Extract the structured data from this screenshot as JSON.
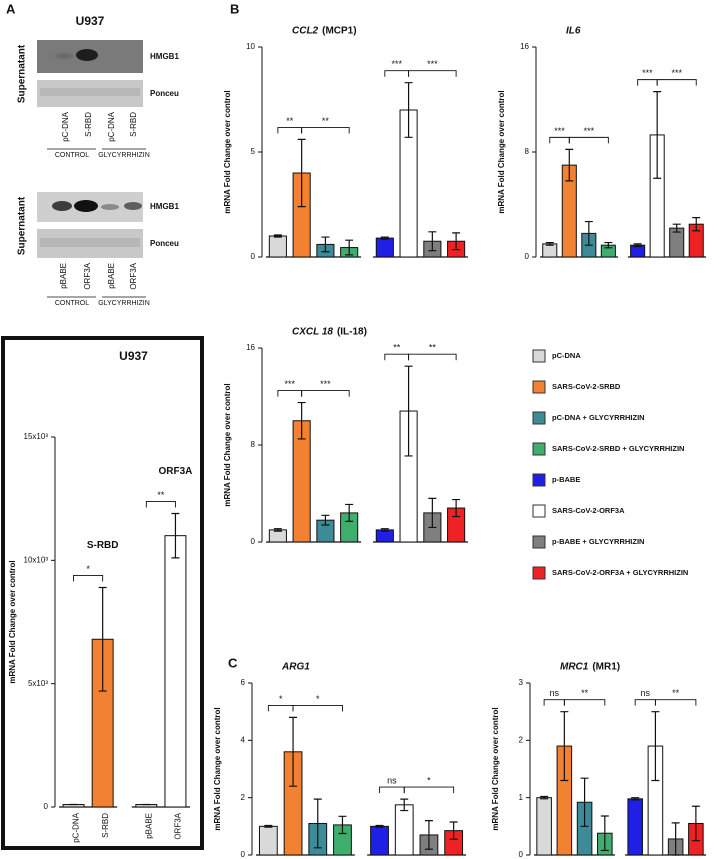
{
  "panels": {
    "a": "A",
    "b": "B",
    "c": "C"
  },
  "blots": [
    {
      "title": "U937",
      "rows": [
        "HMGB1",
        "Ponceu"
      ],
      "side_label": "Supernatant",
      "lanes": [
        "pC-DNA",
        "S-RBD",
        "pC-DNA",
        "S-RBD"
      ],
      "groups": [
        "CONTROL",
        "GLYCYRRHIZIN"
      ]
    },
    {
      "rows": [
        "HMGB1",
        "Ponceu"
      ],
      "side_label": "Supernatant",
      "lanes": [
        "pBABE",
        "ORF3A",
        "pBABE",
        "ORF3A"
      ],
      "groups": [
        "CONTROL",
        "GLYCYRRHIZIN"
      ]
    }
  ],
  "legend": {
    "items": [
      {
        "name": "pC-DNA",
        "color": "#d9d9d9"
      },
      {
        "name": "SARS-CoV-2-SRBD",
        "color": "#f28131"
      },
      {
        "name": "pC-DNA + GLYCYRRHIZIN",
        "color": "#3d8a99"
      },
      {
        "name": "SARS-CoV-2-SRBD + GLYCYRRHIZIN",
        "color": "#3fae6d"
      },
      {
        "name": "p-BABE",
        "color": "#1f1fe6"
      },
      {
        "name": "SARS-CoV-2-ORF3A",
        "color": "#ffffff"
      },
      {
        "name": "p-BABE + GLYCYRRHIZIN",
        "color": "#7f7f7f"
      },
      {
        "name": "SARS-CoV-2-ORF3A + GLYCYRRHIZIN",
        "color": "#ee2222"
      }
    ]
  },
  "chart_data": [
    {
      "type": "bar",
      "title": "U937",
      "ylabel": "mRNA Fold Change over control",
      "categories": [
        "pC-DNA",
        "S-RBD",
        "pBABE",
        "ORF3A"
      ],
      "values": [
        100,
        6800,
        100,
        11000
      ],
      "errors": [
        0,
        2100,
        0,
        900
      ],
      "colors": [
        "#d9d9d9",
        "#f28131",
        "#d9d9d9",
        "#ffffff"
      ],
      "ylim": [
        0,
        15000
      ],
      "yticks": [
        0,
        {
          "value": 5000,
          "label": "5x10³"
        },
        {
          "value": 10000,
          "label": "10x10³"
        },
        {
          "value": 15000,
          "label": "15x10³"
        }
      ],
      "group_labels": [
        {
          "text": "S-RBD",
          "bar": 1
        },
        {
          "text": "ORF3A",
          "bar": 3
        }
      ],
      "significance": [
        {
          "text": "*",
          "from": 0,
          "to": 1
        },
        {
          "text": "**",
          "from": 2,
          "to": 3
        }
      ]
    },
    {
      "type": "bar",
      "title": "CCL2",
      "subtitle": "(MCP1)",
      "ylabel": "mRNA Fold Change over control",
      "values": [
        1,
        4,
        0.6,
        0.45,
        0.9,
        7,
        0.75,
        0.75
      ],
      "errors": [
        0.05,
        1.6,
        0.35,
        0.35,
        0.05,
        1.3,
        0.45,
        0.4
      ],
      "ylim": [
        0,
        10
      ],
      "yticks": [
        0,
        5,
        10
      ],
      "significance": [
        {
          "text": "**",
          "from": 0,
          "to": 1
        },
        {
          "text": "**",
          "from": 1,
          "to": 3
        },
        {
          "text": "***",
          "from": 4,
          "to": 5
        },
        {
          "text": "***",
          "from": 5,
          "to": 7
        }
      ]
    },
    {
      "type": "bar",
      "title": "IL6",
      "ylabel": "mRNA Fold Change over control",
      "values": [
        1,
        7,
        1.8,
        0.9,
        0.9,
        9.3,
        2.2,
        2.5
      ],
      "errors": [
        0.1,
        1.2,
        0.9,
        0.2,
        0.1,
        3.3,
        0.3,
        0.5
      ],
      "ylim": [
        0,
        16
      ],
      "yticks": [
        0,
        8,
        16
      ],
      "significance": [
        {
          "text": "***",
          "from": 0,
          "to": 1
        },
        {
          "text": "***",
          "from": 1,
          "to": 3
        },
        {
          "text": "***",
          "from": 4,
          "to": 5
        },
        {
          "text": "***",
          "from": 5,
          "to": 7
        }
      ]
    },
    {
      "type": "bar",
      "title": "CXCL 18",
      "subtitle": "(IL-18)",
      "ylabel": "mRNA Fold Change over control",
      "values": [
        1,
        10,
        1.8,
        2.4,
        1,
        10.8,
        2.4,
        2.8
      ],
      "errors": [
        0.1,
        1.5,
        0.4,
        0.7,
        0.1,
        3.7,
        1.2,
        0.7
      ],
      "ylim": [
        0,
        16
      ],
      "yticks": [
        0,
        8,
        16
      ],
      "significance": [
        {
          "text": "***",
          "from": 0,
          "to": 1
        },
        {
          "text": "***",
          "from": 1,
          "to": 3
        },
        {
          "text": "**",
          "from": 4,
          "to": 5
        },
        {
          "text": "**",
          "from": 5,
          "to": 7
        }
      ]
    },
    {
      "type": "bar",
      "title": "ARG1",
      "ylabel": "mRNA Fold Change over control",
      "values": [
        1,
        3.6,
        1.1,
        1.05,
        1,
        1.75,
        0.7,
        0.85
      ],
      "errors": [
        0.03,
        1.2,
        0.85,
        0.3,
        0.03,
        0.2,
        0.5,
        0.3
      ],
      "ylim": [
        0,
        6
      ],
      "yticks": [
        0,
        2,
        4,
        6
      ],
      "significance": [
        {
          "text": "*",
          "from": 0,
          "to": 1
        },
        {
          "text": "*",
          "from": 1,
          "to": 3
        },
        {
          "text": "ns",
          "from": 4,
          "to": 5
        },
        {
          "text": "*",
          "from": 5,
          "to": 7
        }
      ]
    },
    {
      "type": "bar",
      "title": "MRC1",
      "subtitle": "(MR1)",
      "ylabel": "mRNA Fold Change over control",
      "values": [
        1,
        1.9,
        0.92,
        0.38,
        0.98,
        1.9,
        0.28,
        0.55
      ],
      "errors": [
        0.02,
        0.6,
        0.42,
        0.3,
        0.02,
        0.6,
        0.28,
        0.3
      ],
      "ylim": [
        0,
        3
      ],
      "yticks": [
        0,
        1,
        2,
        3
      ],
      "significance": [
        {
          "text": "ns",
          "from": 0,
          "to": 1
        },
        {
          "text": "**",
          "from": 1,
          "to": 3
        },
        {
          "text": "ns",
          "from": 4,
          "to": 5
        },
        {
          "text": "**",
          "from": 5,
          "to": 7
        }
      ]
    }
  ]
}
